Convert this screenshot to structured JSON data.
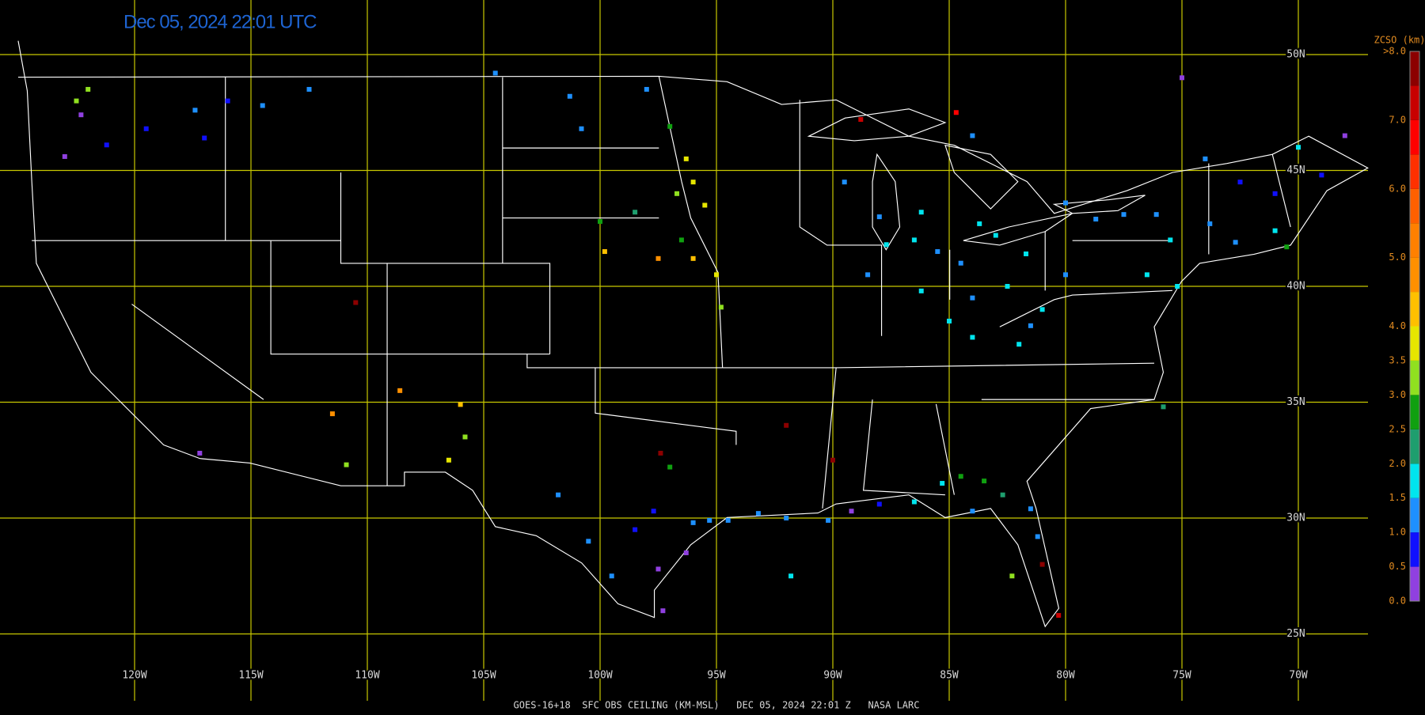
{
  "title": "Dec 05, 2024 22:01 UTC",
  "caption": "GOES-16+18  SFC OBS CEILING (KM-MSL)   DEC 05, 2024 22:01 Z   NASA LARC",
  "grid": {
    "longitudes": [
      {
        "value": -120,
        "label": "120W"
      },
      {
        "value": -115,
        "label": "115W"
      },
      {
        "value": -110,
        "label": "110W"
      },
      {
        "value": -105,
        "label": "105W"
      },
      {
        "value": -100,
        "label": "100W"
      },
      {
        "value": -95,
        "label": "95W"
      },
      {
        "value": -90,
        "label": "90W"
      },
      {
        "value": -85,
        "label": "85W"
      },
      {
        "value": -80,
        "label": "80W"
      },
      {
        "value": -75,
        "label": "75W"
      },
      {
        "value": -70,
        "label": "70W"
      }
    ],
    "latitudes": [
      {
        "value": 50,
        "label": "50N"
      },
      {
        "value": 45,
        "label": "45N"
      },
      {
        "value": 40,
        "label": "40N"
      },
      {
        "value": 35,
        "label": "35N"
      },
      {
        "value": 30,
        "label": "30N"
      },
      {
        "value": 25,
        "label": "25N"
      }
    ]
  },
  "colorbar": {
    "title": "ZCSO (km)",
    "range": [
      0,
      8
    ],
    "colors": [
      "#9040e0",
      "#1010ff",
      "#1e90ff",
      "#00e5ee",
      "#1e9e6e",
      "#10a010",
      "#90e020",
      "#e6e600",
      "#ffc000",
      "#ff9000",
      "#ff8000",
      "#ff6000",
      "#ff3000",
      "#ff0000",
      "#c80000",
      "#8c0000"
    ],
    "ticks": [
      {
        "value": 0,
        "label": "0.0"
      },
      {
        "value": 0.5,
        "label": "0.5"
      },
      {
        "value": 1,
        "label": "1.0"
      },
      {
        "value": 1.5,
        "label": "1.5"
      },
      {
        "value": 2,
        "label": "2.0"
      },
      {
        "value": 2.5,
        "label": "2.5"
      },
      {
        "value": 3,
        "label": "3.0"
      },
      {
        "value": 3.5,
        "label": "3.5"
      },
      {
        "value": 4,
        "label": "4.0"
      },
      {
        "value": 5,
        "label": "5.0"
      },
      {
        "value": 6,
        "label": "6.0"
      },
      {
        "value": 7,
        "label": "7.0"
      },
      {
        "value": 8,
        "label": ">8.0"
      }
    ]
  },
  "stations": [
    {
      "lon": -122.3,
      "lat": 47.4,
      "value": 0.3
    },
    {
      "lon": -122.5,
      "lat": 48.0,
      "value": 3.0
    },
    {
      "lon": -122.0,
      "lat": 48.5,
      "value": 3.2
    },
    {
      "lon": -117.4,
      "lat": 47.6,
      "value": 1.0
    },
    {
      "lon": -116.0,
      "lat": 48.0,
      "value": 0.9
    },
    {
      "lon": -117.0,
      "lat": 46.4,
      "value": 0.8
    },
    {
      "lon": -123.0,
      "lat": 45.6,
      "value": 0.3
    },
    {
      "lon": -121.2,
      "lat": 46.1,
      "value": 0.8
    },
    {
      "lon": -119.5,
      "lat": 46.8,
      "value": 0.8
    },
    {
      "lon": -112.5,
      "lat": 48.5,
      "value": 1.2
    },
    {
      "lon": -114.5,
      "lat": 47.8,
      "value": 1.0
    },
    {
      "lon": -104.5,
      "lat": 49.2,
      "value": 1.1
    },
    {
      "lon": -101.3,
      "lat": 48.2,
      "value": 1.3
    },
    {
      "lon": -98.0,
      "lat": 48.5,
      "value": 1.0
    },
    {
      "lon": -100.8,
      "lat": 46.8,
      "value": 1.3
    },
    {
      "lon": -97.0,
      "lat": 46.9,
      "value": 2.5
    },
    {
      "lon": -96.7,
      "lat": 44.0,
      "value": 3.2
    },
    {
      "lon": -96.3,
      "lat": 45.5,
      "value": 3.8
    },
    {
      "lon": -96.0,
      "lat": 44.5,
      "value": 3.6
    },
    {
      "lon": -95.5,
      "lat": 43.5,
      "value": 3.9
    },
    {
      "lon": -98.5,
      "lat": 43.2,
      "value": 2.2
    },
    {
      "lon": -99.8,
      "lat": 41.5,
      "value": 4.2
    },
    {
      "lon": -97.5,
      "lat": 41.2,
      "value": 4.5
    },
    {
      "lon": -96.0,
      "lat": 41.2,
      "value": 4.2
    },
    {
      "lon": -95.0,
      "lat": 40.5,
      "value": 3.6
    },
    {
      "lon": -96.5,
      "lat": 42.0,
      "value": 2.6
    },
    {
      "lon": -100.0,
      "lat": 42.8,
      "value": 2.7
    },
    {
      "lon": -94.8,
      "lat": 39.1,
      "value": 3.4
    },
    {
      "lon": -110.5,
      "lat": 39.3,
      "value": 7.8
    },
    {
      "lon": -108.6,
      "lat": 35.5,
      "value": 4.8
    },
    {
      "lon": -111.5,
      "lat": 34.5,
      "value": 4.5
    },
    {
      "lon": -106.0,
      "lat": 34.9,
      "value": 4.2
    },
    {
      "lon": -106.5,
      "lat": 32.5,
      "value": 3.8
    },
    {
      "lon": -105.8,
      "lat": 33.5,
      "value": 3.3
    },
    {
      "lon": -110.9,
      "lat": 32.3,
      "value": 3.0
    },
    {
      "lon": -117.2,
      "lat": 32.8,
      "value": 0.3
    },
    {
      "lon": -97.4,
      "lat": 32.8,
      "value": 7.8
    },
    {
      "lon": -97.0,
      "lat": 32.2,
      "value": 2.7
    },
    {
      "lon": -98.5,
      "lat": 29.5,
      "value": 0.9
    },
    {
      "lon": -97.7,
      "lat": 30.3,
      "value": 0.8
    },
    {
      "lon": -96.0,
      "lat": 29.8,
      "value": 1.2
    },
    {
      "lon": -95.3,
      "lat": 29.9,
      "value": 1.2
    },
    {
      "lon": -94.5,
      "lat": 29.9,
      "value": 1.1
    },
    {
      "lon": -97.5,
      "lat": 27.8,
      "value": 0.3
    },
    {
      "lon": -97.3,
      "lat": 26.0,
      "value": 0.4
    },
    {
      "lon": -99.5,
      "lat": 27.5,
      "value": 1.0
    },
    {
      "lon": -101.8,
      "lat": 31.0,
      "value": 1.2
    },
    {
      "lon": -96.3,
      "lat": 28.5,
      "value": 0.3
    },
    {
      "lon": -100.5,
      "lat": 29.0,
      "value": 1.2
    },
    {
      "lon": -93.2,
      "lat": 30.2,
      "value": 1.3
    },
    {
      "lon": -92.0,
      "lat": 30.0,
      "value": 1.4
    },
    {
      "lon": -90.2,
      "lat": 29.9,
      "value": 1.0
    },
    {
      "lon": -89.2,
      "lat": 30.3,
      "value": 0.4
    },
    {
      "lon": -88.0,
      "lat": 30.6,
      "value": 0.8
    },
    {
      "lon": -92.0,
      "lat": 34.0,
      "value": 7.8
    },
    {
      "lon": -90.0,
      "lat": 32.5,
      "value": 7.8
    },
    {
      "lon": -91.8,
      "lat": 27.5,
      "value": 1.8
    },
    {
      "lon": -86.5,
      "lat": 30.7,
      "value": 1.5
    },
    {
      "lon": -85.3,
      "lat": 31.5,
      "value": 1.8
    },
    {
      "lon": -84.5,
      "lat": 31.8,
      "value": 2.5
    },
    {
      "lon": -83.5,
      "lat": 31.6,
      "value": 2.7
    },
    {
      "lon": -82.7,
      "lat": 31.0,
      "value": 2.2
    },
    {
      "lon": -81.5,
      "lat": 30.4,
      "value": 1.4
    },
    {
      "lon": -81.2,
      "lat": 29.2,
      "value": 1.2
    },
    {
      "lon": -82.3,
      "lat": 27.5,
      "value": 3.3
    },
    {
      "lon": -80.3,
      "lat": 25.8,
      "value": 7.2
    },
    {
      "lon": -81.0,
      "lat": 28.0,
      "value": 7.8
    },
    {
      "lon": -84.0,
      "lat": 30.3,
      "value": 1.2
    },
    {
      "lon": -88.0,
      "lat": 43.0,
      "value": 1.3
    },
    {
      "lon": -89.5,
      "lat": 44.5,
      "value": 1.3
    },
    {
      "lon": -86.2,
      "lat": 43.2,
      "value": 1.6
    },
    {
      "lon": -86.5,
      "lat": 42.0,
      "value": 1.7
    },
    {
      "lon": -87.7,
      "lat": 41.8,
      "value": 1.5
    },
    {
      "lon": -85.5,
      "lat": 41.5,
      "value": 1.3
    },
    {
      "lon": -83.7,
      "lat": 42.7,
      "value": 1.5
    },
    {
      "lon": -83.0,
      "lat": 42.2,
      "value": 1.6
    },
    {
      "lon": -84.5,
      "lat": 41.0,
      "value": 1.4
    },
    {
      "lon": -82.5,
      "lat": 40.0,
      "value": 1.8
    },
    {
      "lon": -84.0,
      "lat": 39.5,
      "value": 1.4
    },
    {
      "lon": -81.7,
      "lat": 41.4,
      "value": 1.5
    },
    {
      "lon": -80.0,
      "lat": 40.5,
      "value": 1.2
    },
    {
      "lon": -81.0,
      "lat": 39.0,
      "value": 1.5
    },
    {
      "lon": -85.0,
      "lat": 38.5,
      "value": 1.7
    },
    {
      "lon": -84.0,
      "lat": 37.8,
      "value": 1.8
    },
    {
      "lon": -81.5,
      "lat": 38.3,
      "value": 1.3
    },
    {
      "lon": -88.5,
      "lat": 40.5,
      "value": 1.4
    },
    {
      "lon": -86.2,
      "lat": 39.8,
      "value": 1.6
    },
    {
      "lon": -82.0,
      "lat": 37.5,
      "value": 1.9
    },
    {
      "lon": -78.7,
      "lat": 42.9,
      "value": 1.3
    },
    {
      "lon": -76.1,
      "lat": 43.1,
      "value": 1.0
    },
    {
      "lon": -77.5,
      "lat": 43.1,
      "value": 1.1
    },
    {
      "lon": -75.5,
      "lat": 42.0,
      "value": 1.5
    },
    {
      "lon": -76.5,
      "lat": 40.5,
      "value": 1.7
    },
    {
      "lon": -75.2,
      "lat": 40.0,
      "value": 1.8
    },
    {
      "lon": -73.8,
      "lat": 42.7,
      "value": 1.0
    },
    {
      "lon": -72.7,
      "lat": 41.9,
      "value": 1.1
    },
    {
      "lon": -71.0,
      "lat": 42.4,
      "value": 1.5
    },
    {
      "lon": -70.5,
      "lat": 41.7,
      "value": 2.8
    },
    {
      "lon": -71.0,
      "lat": 44.0,
      "value": 0.5
    },
    {
      "lon": -69.0,
      "lat": 44.8,
      "value": 0.8
    },
    {
      "lon": -68.0,
      "lat": 46.5,
      "value": 0.4
    },
    {
      "lon": -72.5,
      "lat": 44.5,
      "value": 0.7
    },
    {
      "lon": -70.0,
      "lat": 46.0,
      "value": 1.7
    },
    {
      "lon": -74.0,
      "lat": 45.5,
      "value": 1.0
    },
    {
      "lon": -80.0,
      "lat": 43.6,
      "value": 1.2
    },
    {
      "lon": -84.0,
      "lat": 46.5,
      "value": 1.2
    },
    {
      "lon": -88.8,
      "lat": 47.2,
      "value": 7.2
    },
    {
      "lon": -84.7,
      "lat": 47.5,
      "value": 6.8
    },
    {
      "lon": -75.8,
      "lat": 34.8,
      "value": 2.2
    },
    {
      "lon": -75.0,
      "lat": 49.0,
      "value": 0.3
    }
  ]
}
